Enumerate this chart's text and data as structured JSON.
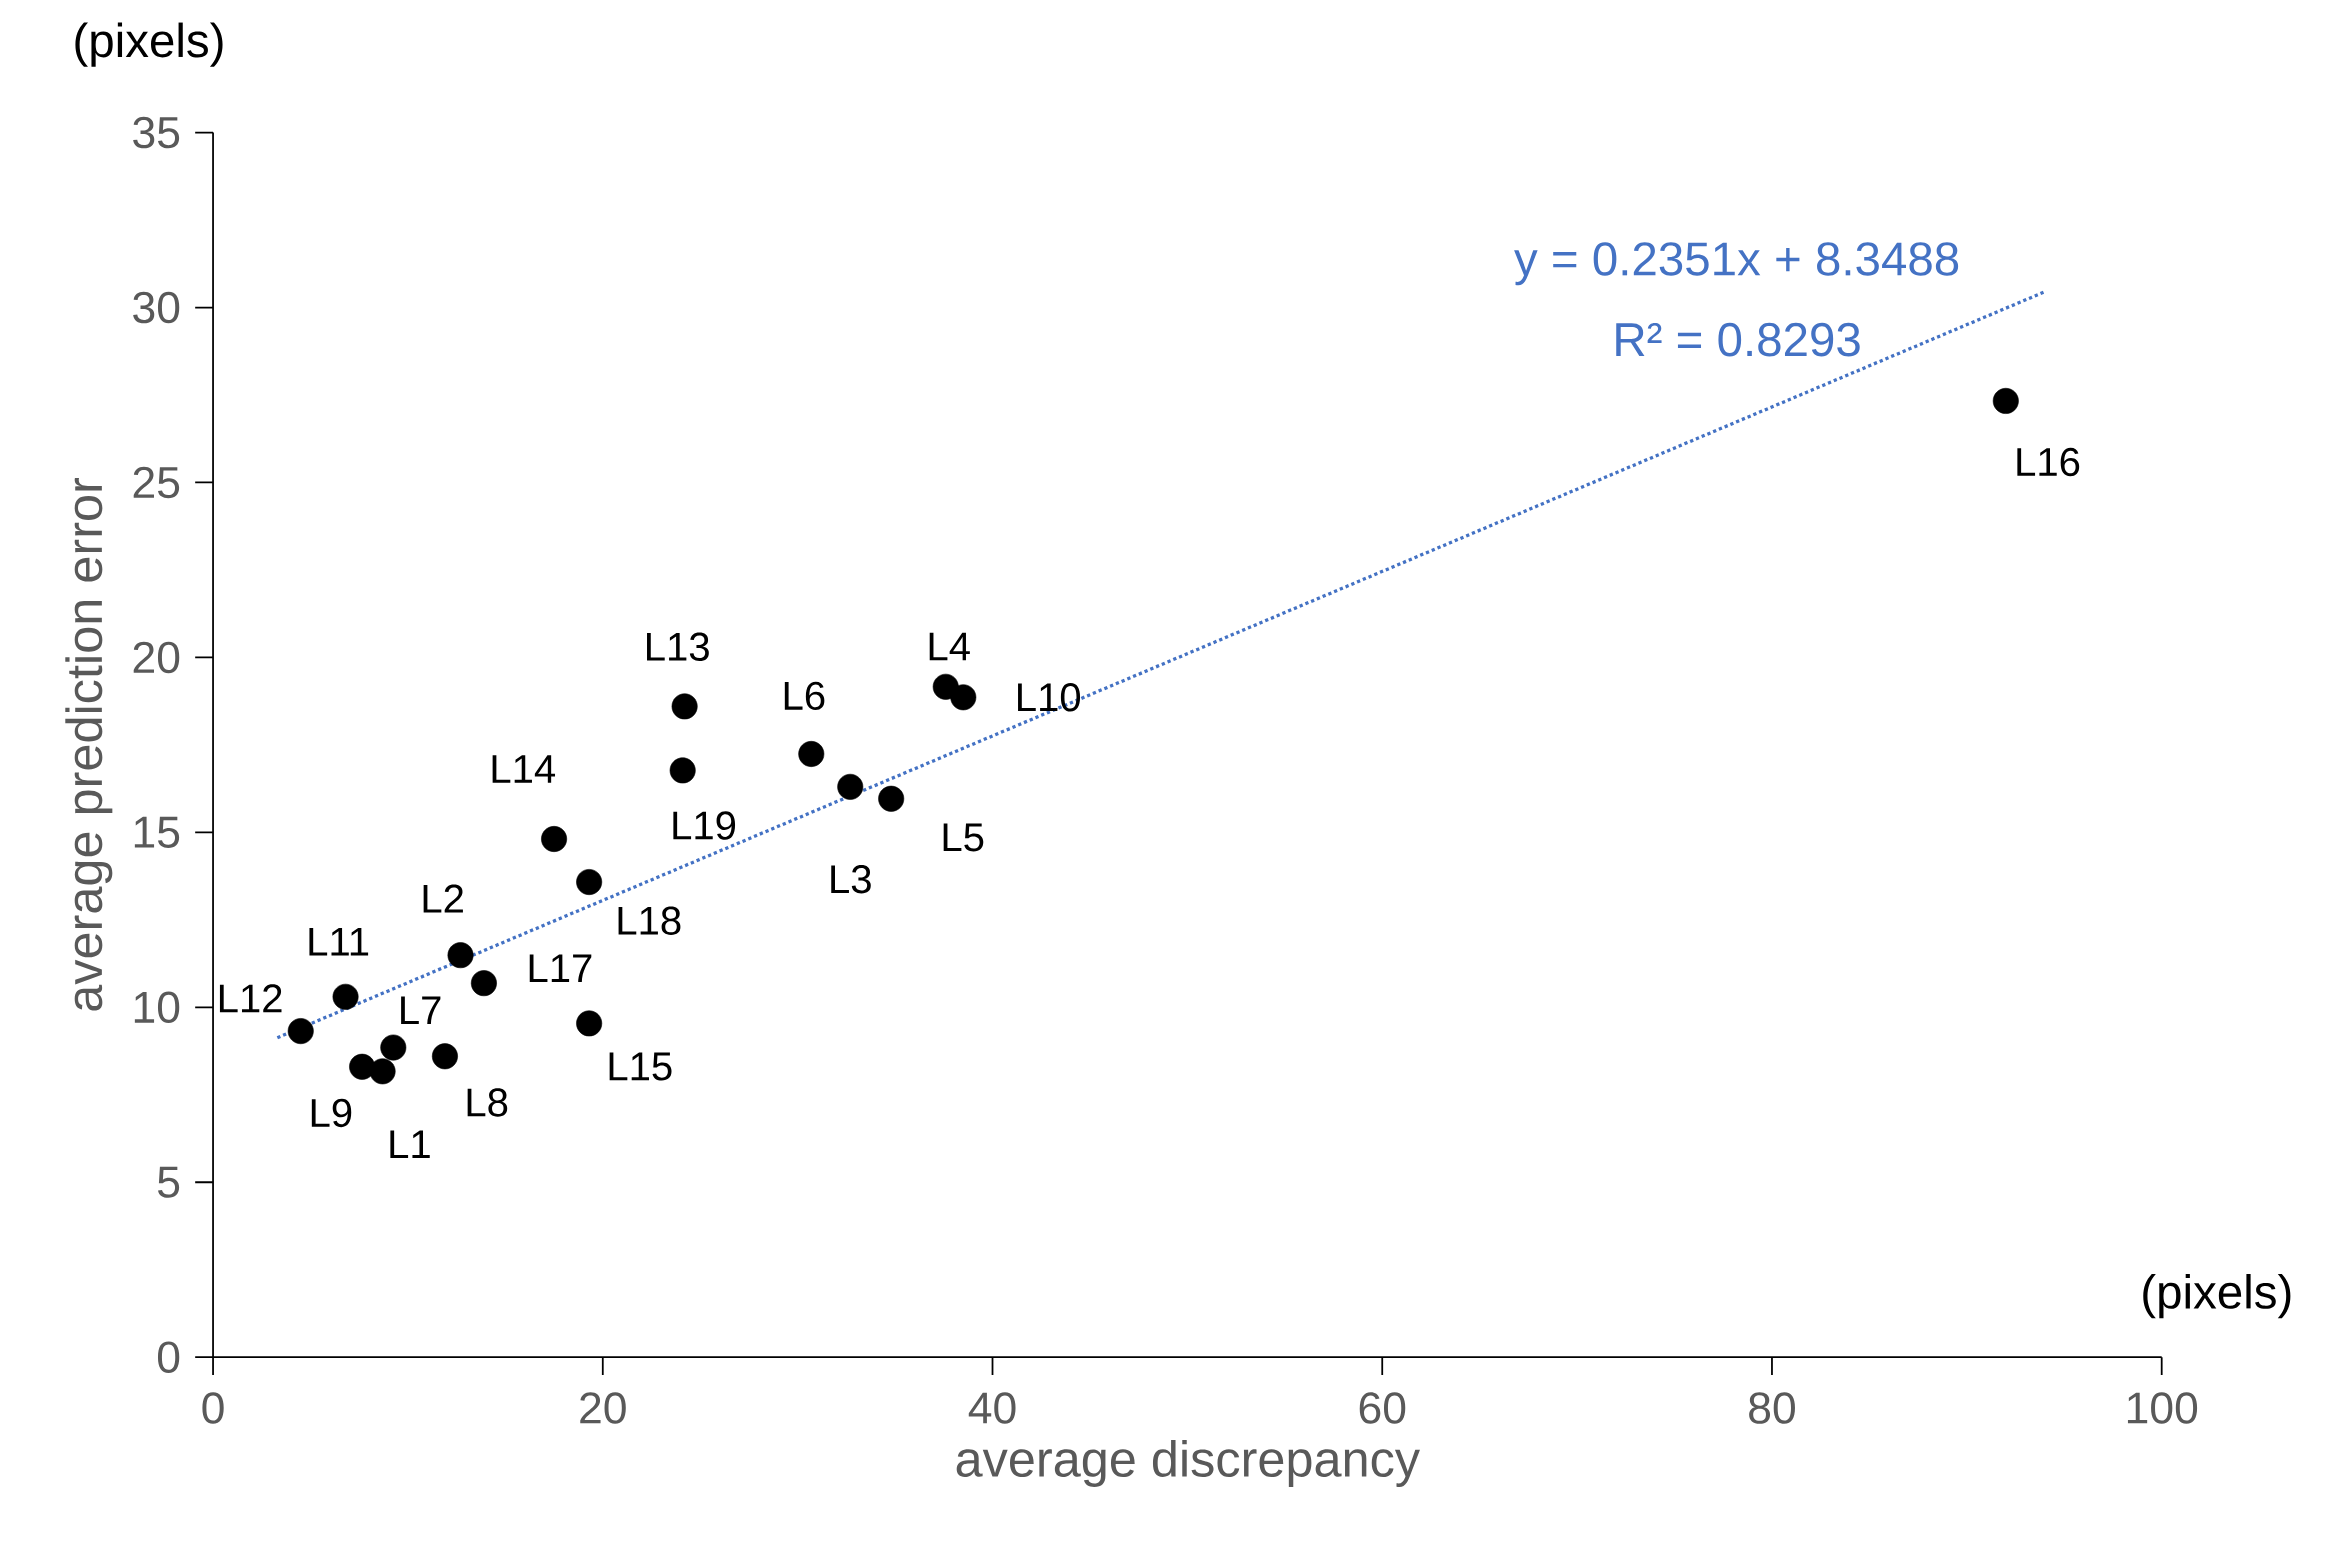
{
  "chart_data": {
    "type": "scatter",
    "xlabel": "average discrepancy",
    "ylabel": "average prediction error",
    "xlim": [
      0,
      100
    ],
    "xticks": [
      0,
      20,
      40,
      60,
      80,
      100
    ],
    "ylim": [
      0,
      35
    ],
    "yticks": [
      0,
      5,
      10,
      15,
      20,
      25,
      30,
      35
    ],
    "series": [
      {
        "type": "scatter",
        "marker": "circle",
        "color": "#000000",
        "x": [
          8.7,
          12.7,
          32.7,
          37.6,
          34.8,
          30.7,
          9.25,
          11.9,
          7.65,
          38.5,
          6.8,
          4.5,
          24.2,
          17.5,
          19.3,
          92.0,
          13.9,
          19.3,
          24.1
        ],
        "values": [
          8.17,
          11.49,
          16.3,
          19.16,
          15.96,
          17.24,
          8.85,
          8.6,
          8.3,
          18.86,
          10.3,
          9.32,
          18.6,
          14.81,
          9.54,
          27.33,
          10.69,
          13.58,
          16.77
        ]
      },
      {
        "type": "line",
        "color": "#4472c4",
        "line_style": "dotted",
        "marker": "none",
        "x": [
          3.3,
          94.0
        ],
        "values": [
          9.13,
          30.45
        ]
      }
    ],
    "annotations": [
      {
        "text": "L1",
        "x": 8.7,
        "y": 8.17
      },
      {
        "text": "L2",
        "x": 12.7,
        "y": 11.49
      },
      {
        "text": "L3",
        "x": 32.7,
        "y": 16.3
      },
      {
        "text": "L4",
        "x": 37.6,
        "y": 19.16
      },
      {
        "text": "L5",
        "x": 34.8,
        "y": 15.96
      },
      {
        "text": "L6",
        "x": 30.7,
        "y": 17.24
      },
      {
        "text": "L7",
        "x": 9.25,
        "y": 8.85
      },
      {
        "text": "L8",
        "x": 11.9,
        "y": 8.6
      },
      {
        "text": "L9",
        "x": 7.65,
        "y": 8.3
      },
      {
        "text": "L10",
        "x": 38.5,
        "y": 18.86
      },
      {
        "text": "L11",
        "x": 6.8,
        "y": 10.3
      },
      {
        "text": "L12",
        "x": 4.5,
        "y": 9.32
      },
      {
        "text": "L13",
        "x": 24.2,
        "y": 18.6
      },
      {
        "text": "L14",
        "x": 17.5,
        "y": 14.81
      },
      {
        "text": "L15",
        "x": 19.3,
        "y": 9.54
      },
      {
        "text": "L16",
        "x": 92.0,
        "y": 27.33
      },
      {
        "text": "L17",
        "x": 13.9,
        "y": 10.69
      },
      {
        "text": "L18",
        "x": 19.3,
        "y": 13.58
      },
      {
        "text": "L19",
        "x": 24.1,
        "y": 16.77
      },
      "y = 0.2351x + 8.3488",
      "R² = 0.8293",
      "(pixels)",
      "(pixels)"
    ]
  }
}
